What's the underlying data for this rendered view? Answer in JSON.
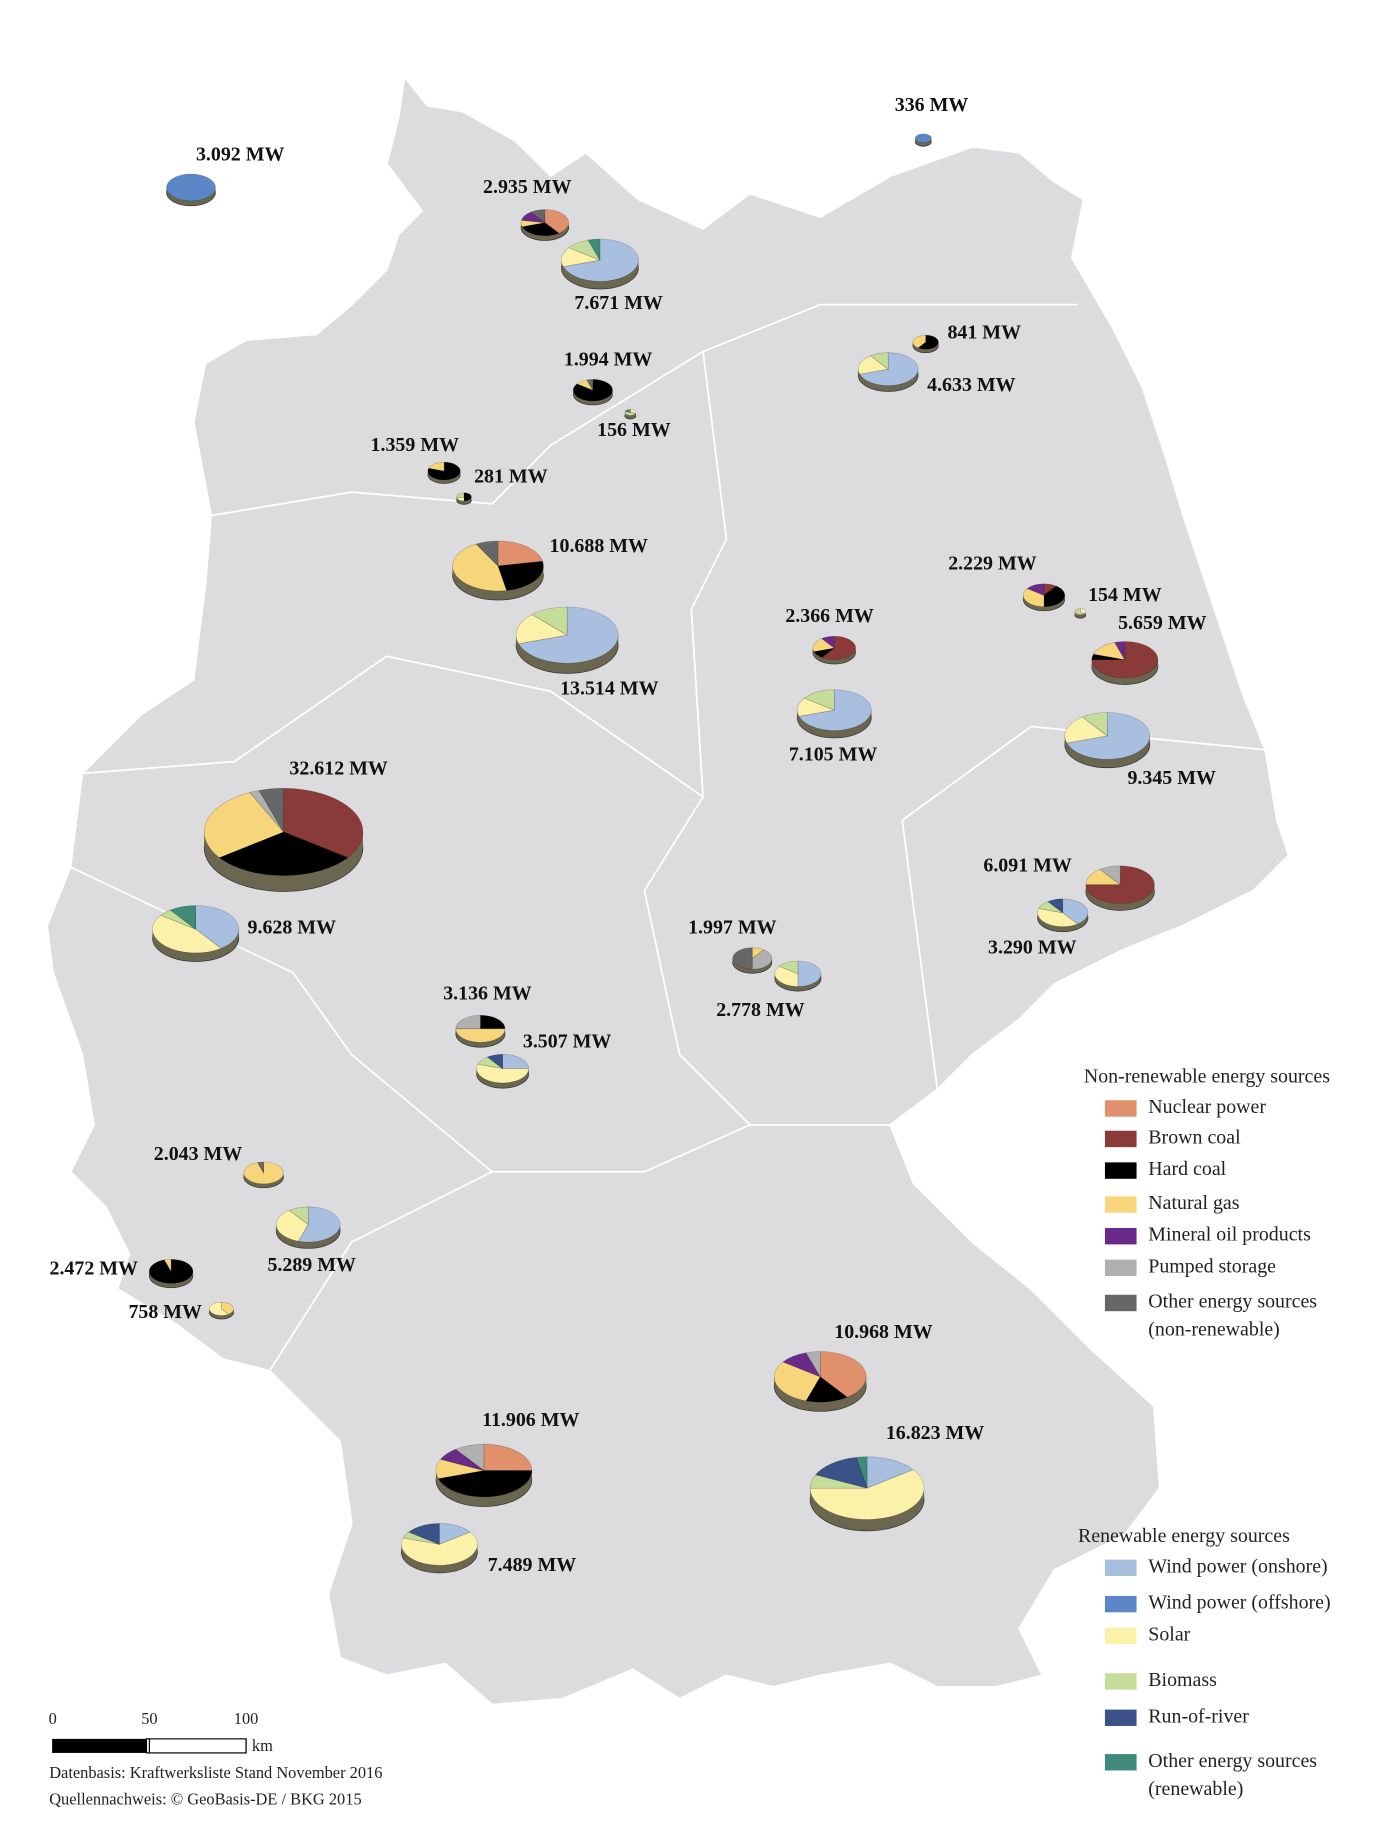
{
  "legend": {
    "nonrenewable": {
      "title": "Non-renewable energy sources",
      "items": [
        {
          "label": [
            "Nuclear power"
          ],
          "color": "#e0906a"
        },
        {
          "label": [
            "Brown coal"
          ],
          "color": "#8b3a3a"
        },
        {
          "label": [
            "Hard coal"
          ],
          "color": "#000000"
        },
        {
          "label": [
            "Natural gas"
          ],
          "color": "#f7d57a"
        },
        {
          "label": [
            "Mineral oil products"
          ],
          "color": "#6a2a8a"
        },
        {
          "label": [
            "Pumped storage"
          ],
          "color": "#b0b0b0"
        },
        {
          "label": [
            "Other energy sources",
            "(non-renewable)"
          ],
          "color": "#666666"
        }
      ]
    },
    "renewable": {
      "title": "Renewable energy sources",
      "items": [
        {
          "label": [
            "Wind power (onshore)"
          ],
          "color": "#a8bfe0"
        },
        {
          "label": [
            "Wind power (offshore)"
          ],
          "color": "#5b87c8"
        },
        {
          "label": [
            "Solar"
          ],
          "color": "#fbf1a8"
        },
        {
          "label": [
            "Biomass"
          ],
          "color": "#c5dc9a"
        },
        {
          "label": [
            "Run-of-river"
          ],
          "color": "#3b5288"
        },
        {
          "label": [
            "Other energy sources",
            "(renewable)"
          ],
          "color": "#3f8a78"
        }
      ]
    }
  },
  "pies": [
    {
      "label": "3.092 MW",
      "capacity": 3092,
      "shares": [
        0,
        0,
        0,
        0,
        0,
        0,
        0,
        0,
        100,
        0,
        0,
        0,
        0
      ]
    },
    {
      "label": "336 MW",
      "capacity": 336,
      "shares": [
        0,
        0,
        0,
        0,
        0,
        0,
        0,
        0,
        100,
        0,
        0,
        0,
        0
      ]
    },
    {
      "label": "2.935 MW",
      "capacity": 2935,
      "shares": [
        40,
        0,
        30,
        8,
        12,
        0,
        10,
        0,
        0,
        0,
        0,
        0,
        0
      ]
    },
    {
      "label": "7.671 MW",
      "capacity": 7671,
      "shares": [
        0,
        0,
        0,
        0,
        0,
        0,
        0,
        70,
        0,
        15,
        10,
        0,
        5
      ]
    },
    {
      "label": "1.994 MW",
      "capacity": 1994,
      "shares": [
        0,
        0,
        85,
        10,
        0,
        0,
        5,
        0,
        0,
        0,
        0,
        0,
        0
      ]
    },
    {
      "label": "156 MW",
      "capacity": 156,
      "shares": [
        0,
        0,
        0,
        0,
        0,
        0,
        0,
        0,
        0,
        30,
        50,
        0,
        20
      ]
    },
    {
      "label": "841 MW",
      "capacity": 841,
      "shares": [
        0,
        0,
        60,
        40,
        0,
        0,
        0,
        0,
        0,
        0,
        0,
        0,
        0
      ]
    },
    {
      "label": "4.633 MW",
      "capacity": 4633,
      "shares": [
        0,
        0,
        0,
        0,
        0,
        0,
        0,
        70,
        0,
        20,
        10,
        0,
        0
      ]
    },
    {
      "label": "1.359 MW",
      "capacity": 1359,
      "shares": [
        0,
        0,
        80,
        20,
        0,
        0,
        0,
        0,
        0,
        0,
        0,
        0,
        0
      ]
    },
    {
      "label": "281 MW",
      "capacity": 281,
      "shares": [
        0,
        0,
        50,
        0,
        0,
        0,
        0,
        0,
        0,
        20,
        30,
        0,
        0
      ]
    },
    {
      "label": "10.688 MW",
      "capacity": 10688,
      "shares": [
        22,
        0,
        25,
        45,
        0,
        0,
        8,
        0,
        0,
        0,
        0,
        0,
        0
      ]
    },
    {
      "label": "13.514 MW",
      "capacity": 13514,
      "shares": [
        0,
        0,
        0,
        0,
        0,
        0,
        0,
        70,
        0,
        18,
        12,
        0,
        0
      ]
    },
    {
      "label": "2.366 MW",
      "capacity": 2366,
      "shares": [
        0,
        60,
        10,
        20,
        10,
        0,
        0,
        0,
        0,
        0,
        0,
        0,
        0
      ]
    },
    {
      "label": "7.105 MW",
      "capacity": 7105,
      "shares": [
        0,
        0,
        0,
        0,
        0,
        0,
        0,
        70,
        0,
        15,
        15,
        0,
        0
      ]
    },
    {
      "label": "2.229 MW",
      "capacity": 2229,
      "shares": [
        0,
        10,
        40,
        35,
        15,
        0,
        0,
        0,
        0,
        0,
        0,
        0,
        0
      ]
    },
    {
      "label": "154 MW",
      "capacity": 154,
      "shares": [
        0,
        0,
        0,
        0,
        0,
        0,
        0,
        0,
        0,
        40,
        60,
        0,
        0
      ]
    },
    {
      "label": "5.659 MW",
      "capacity": 5659,
      "shares": [
        0,
        75,
        5,
        15,
        5,
        0,
        0,
        0,
        0,
        0,
        0,
        0,
        0
      ]
    },
    {
      "label": "9.345 MW",
      "capacity": 9345,
      "shares": [
        0,
        0,
        0,
        0,
        0,
        0,
        0,
        70,
        0,
        20,
        10,
        0,
        0
      ]
    },
    {
      "label": "32.612 MW",
      "capacity": 32612,
      "shares": [
        0,
        35,
        30,
        28,
        0,
        2,
        5,
        0,
        0,
        0,
        0,
        0,
        0
      ]
    },
    {
      "label": "9.628 MW",
      "capacity": 9628,
      "shares": [
        0,
        0,
        0,
        0,
        0,
        0,
        0,
        40,
        0,
        45,
        5,
        0,
        10
      ]
    },
    {
      "label": "6.091 MW",
      "capacity": 6091,
      "shares": [
        0,
        75,
        0,
        15,
        0,
        10,
        0,
        0,
        0,
        0,
        0,
        0,
        0
      ]
    },
    {
      "label": "3.290 MW",
      "capacity": 3290,
      "shares": [
        0,
        0,
        0,
        0,
        0,
        0,
        0,
        40,
        0,
        40,
        10,
        10,
        0
      ]
    },
    {
      "label": "1.997 MW",
      "capacity": 1997,
      "shares": [
        0,
        0,
        0,
        10,
        0,
        40,
        50,
        0,
        0,
        0,
        0,
        0,
        0
      ]
    },
    {
      "label": "2.778 MW",
      "capacity": 2778,
      "shares": [
        0,
        0,
        0,
        0,
        0,
        0,
        0,
        50,
        0,
        35,
        15,
        0,
        0
      ]
    },
    {
      "label": "3.136 MW",
      "capacity": 3136,
      "shares": [
        0,
        0,
        25,
        50,
        0,
        25,
        0,
        0,
        0,
        0,
        0,
        0,
        0
      ]
    },
    {
      "label": "3.507 MW",
      "capacity": 3507,
      "shares": [
        0,
        0,
        0,
        0,
        0,
        0,
        0,
        25,
        0,
        55,
        10,
        10,
        0
      ]
    },
    {
      "label": "2.043 MW",
      "capacity": 2043,
      "shares": [
        0,
        0,
        0,
        95,
        0,
        0,
        5,
        0,
        0,
        0,
        0,
        0,
        0
      ]
    },
    {
      "label": "5.289 MW",
      "capacity": 5289,
      "shares": [
        0,
        0,
        0,
        0,
        0,
        0,
        0,
        55,
        0,
        35,
        10,
        0,
        0
      ]
    },
    {
      "label": "2.472 MW",
      "capacity": 2472,
      "shares": [
        0,
        0,
        95,
        5,
        0,
        0,
        0,
        0,
        0,
        0,
        0,
        0,
        0
      ]
    },
    {
      "label": "758 MW",
      "capacity": 758,
      "shares": [
        0,
        0,
        0,
        40,
        0,
        0,
        0,
        0,
        0,
        60,
        0,
        0,
        0
      ]
    },
    {
      "label": "10.968 MW",
      "capacity": 10968,
      "shares": [
        40,
        0,
        15,
        30,
        10,
        5,
        0,
        0,
        0,
        0,
        0,
        0,
        0
      ]
    },
    {
      "label": "16.823 MW",
      "capacity": 16823,
      "shares": [
        0,
        0,
        0,
        0,
        0,
        0,
        0,
        15,
        0,
        60,
        7,
        15,
        3
      ]
    },
    {
      "label": "11.906 MW",
      "capacity": 11906,
      "shares": [
        25,
        0,
        45,
        12,
        8,
        10,
        0,
        0,
        0,
        0,
        0,
        0,
        0
      ]
    },
    {
      "label": "7.489 MW",
      "capacity": 7489,
      "shares": [
        0,
        0,
        0,
        0,
        0,
        0,
        0,
        15,
        0,
        65,
        5,
        15,
        0
      ]
    }
  ],
  "scale": {
    "ticks": [
      0,
      50,
      100
    ],
    "unit": "km"
  },
  "notes": [
    "Datenbasis: Kraftwerksliste Stand November 2016",
    "Quellennachweis: © GeoBasis-DE / BKG 2015"
  ]
}
